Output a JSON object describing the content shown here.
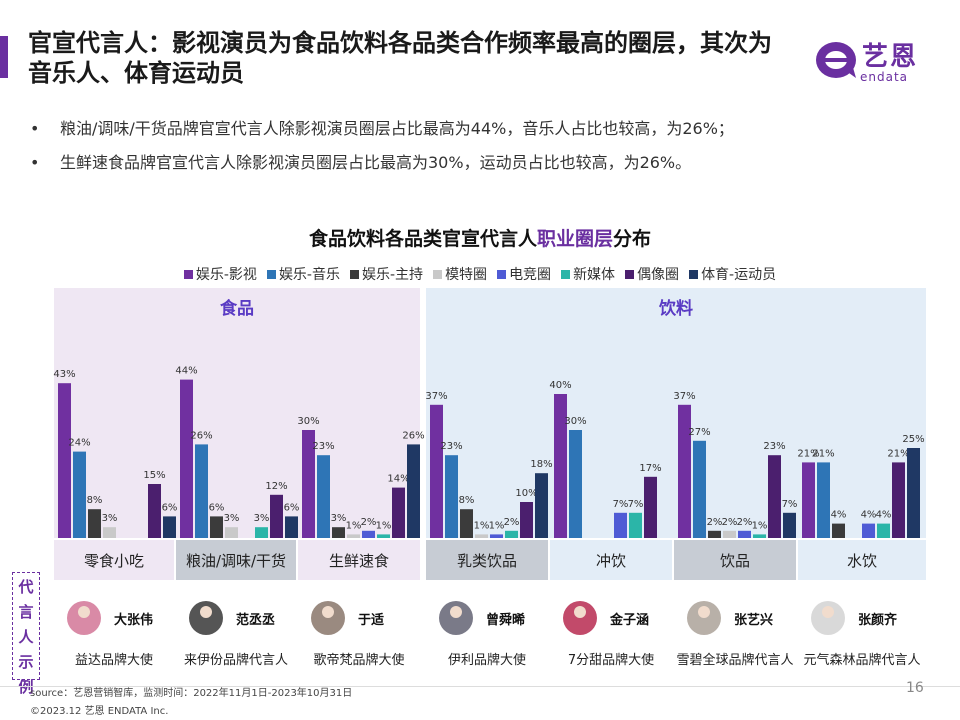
{
  "title": "官宣代言人：影视演员为食品饮料各品类合作频率最高的圈层，其次为音乐人、体育运动员",
  "logo": {
    "cn": "艺恩",
    "en": "endata",
    "color": "#6a2fa0"
  },
  "bullets": [
    "粮油/调味/干货品牌官宣代言人除影视演员圈层占比最高为44%，音乐人占比也较高，为26%；",
    "生鲜速食品牌官宣代言人除影视演员圈层占比最高为30%，运动员占比也较高，为26%。"
  ],
  "bullet_glyph": "•",
  "chart_title": {
    "prefix": "食品饮料各品类官宣代言人",
    "highlight": "职业圈层",
    "suffix": "分布"
  },
  "chart_data": {
    "type": "bar",
    "groups": [
      {
        "label": "食品",
        "categories": [
          "零食小吃",
          "粮油/调味/干货",
          "生鲜速食"
        ]
      },
      {
        "label": "饮料",
        "categories": [
          "乳类饮品",
          "冲饮",
          "饮品",
          "水饮"
        ]
      }
    ],
    "categories": [
      "零食小吃",
      "粮油/调味/干货",
      "生鲜速食",
      "乳类饮品",
      "冲饮",
      "饮品",
      "水饮"
    ],
    "series": [
      {
        "name": "娱乐-影视",
        "color": "#7030a0",
        "values": [
          43,
          44,
          30,
          37,
          40,
          37,
          21
        ]
      },
      {
        "name": "娱乐-音乐",
        "color": "#2e75b6",
        "values": [
          24,
          26,
          23,
          23,
          30,
          27,
          21
        ]
      },
      {
        "name": "娱乐-主持",
        "color": "#3b3b3b",
        "values": [
          8,
          6,
          3,
          8,
          null,
          2,
          4
        ]
      },
      {
        "name": "模特圈",
        "color": "#c9c9c9",
        "values": [
          3,
          3,
          1,
          1,
          null,
          2,
          null
        ]
      },
      {
        "name": "电竞圈",
        "color": "#4f5bd5",
        "values": [
          null,
          null,
          2,
          1,
          7,
          2,
          4
        ]
      },
      {
        "name": "新媒体",
        "color": "#2bb5a8",
        "values": [
          null,
          3,
          1,
          2,
          7,
          1,
          4
        ]
      },
      {
        "name": "偶像圈",
        "color": "#4b1f6e",
        "values": [
          15,
          12,
          14,
          10,
          17,
          23,
          21
        ]
      },
      {
        "name": "体育-运动员",
        "color": "#1f3864",
        "values": [
          6,
          6,
          26,
          18,
          null,
          7,
          25
        ]
      }
    ],
    "value_suffix": "%",
    "ylim": [
      0,
      50
    ]
  },
  "spokespersons": [
    {
      "name": "大张伟",
      "brand": "益达品牌大使"
    },
    {
      "name": "范丞丞",
      "brand": "来伊份品牌代言人"
    },
    {
      "name": "于适",
      "brand": "歌帝梵品牌大使"
    },
    {
      "name": "曾舜晞",
      "brand": "伊利品牌大使"
    },
    {
      "name": "金子涵",
      "brand": "7分甜品牌大使"
    },
    {
      "name": "张艺兴",
      "brand": "雪碧全球品牌代言人"
    },
    {
      "name": "张颜齐",
      "brand": "元气森林品牌代言人"
    }
  ],
  "left_tag": [
    "代",
    "言",
    "人",
    "示",
    "例"
  ],
  "source": "source：艺恩营销智库，监测时间：2022年11月1日-2023年10月31日",
  "copyright": "©2023.12 艺恩 ENDATA Inc.",
  "page_number": "16"
}
